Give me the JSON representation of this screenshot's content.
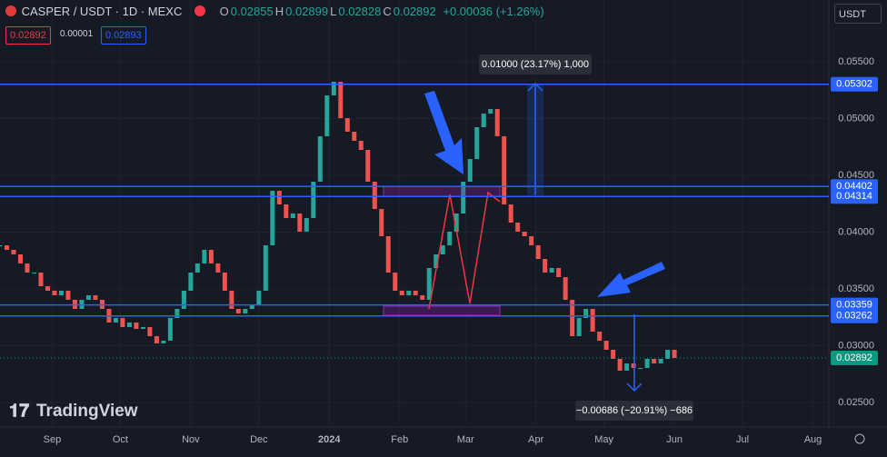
{
  "header": {
    "symbol": "CASPER / USDT · 1D · MEXC",
    "ohlc": [
      {
        "key": "O",
        "value": "0.02855"
      },
      {
        "key": "H",
        "value": "0.02899"
      },
      {
        "key": "L",
        "value": "0.02828"
      },
      {
        "key": "C",
        "value": "0.02892"
      }
    ],
    "change": "+0.00036 (+1.26%)",
    "bid": "0.02892",
    "spread": "0.00001",
    "ask": "0.02893",
    "currency": "USDT"
  },
  "chart_data": {
    "type": "candlestick",
    "x": [
      0,
      3,
      6,
      9,
      12,
      15,
      18,
      21,
      24,
      27,
      30,
      33,
      36,
      39,
      42,
      45,
      48,
      51,
      54,
      57,
      60,
      63,
      66,
      69,
      72,
      75,
      78,
      81,
      84,
      87,
      90,
      93,
      96,
      99,
      102,
      105,
      108,
      111,
      114,
      117,
      120,
      123,
      126,
      129,
      132,
      135,
      138,
      141,
      144,
      147,
      150,
      153,
      156,
      159,
      162,
      165,
      168,
      171,
      174,
      177,
      180,
      183,
      186,
      189,
      192,
      195,
      198,
      201,
      204,
      207,
      210,
      213,
      216,
      219,
      222,
      225,
      228,
      231,
      234,
      237,
      240,
      243,
      246,
      249,
      252,
      255,
      258,
      261,
      264,
      267,
      270,
      273,
      276,
      279,
      282,
      285,
      288,
      291,
      294,
      297
    ],
    "values": [
      0.03884,
      0.03844,
      0.03804,
      0.03724,
      0.03644,
      0.03644,
      0.03524,
      0.03484,
      0.03444,
      0.03484,
      0.03404,
      0.03324,
      0.03404,
      0.03444,
      0.03404,
      0.03324,
      0.03204,
      0.03244,
      0.03164,
      0.03204,
      0.03148,
      0.03164,
      0.03084,
      0.0302,
      0.03044,
      0.03244,
      0.03324,
      0.03484,
      0.03644,
      0.03724,
      0.03844,
      0.03724,
      0.03644,
      0.03484,
      0.03324,
      0.03284,
      0.03324,
      0.03364,
      0.03484,
      0.03884,
      0.04364,
      0.04244,
      0.04124,
      0.04164,
      0.04004,
      0.04124,
      0.04444,
      0.04844,
      0.05204,
      0.05324,
      0.05004,
      0.04884,
      0.04804,
      0.04724,
      0.04444,
      0.04204,
      0.03964,
      0.03644,
      0.03484,
      0.03444,
      0.03484,
      0.03444,
      0.03404,
      0.03684,
      0.03804,
      0.03884,
      0.04004,
      0.04164,
      0.04444,
      0.04644,
      0.04924,
      0.05044,
      0.05084,
      0.04844,
      0.04244,
      0.04084,
      0.04004,
      0.03964,
      0.03884,
      0.03764,
      0.03644,
      0.03684,
      0.03604,
      0.03404,
      0.03084,
      0.03244,
      0.03324,
      0.03124,
      0.03044,
      0.02964,
      0.02884,
      0.0278,
      0.02844,
      0.02804,
      0.02804,
      0.02884,
      0.02844,
      0.02884,
      0.02964,
      0.02892
    ],
    "up_color": "#26a69a",
    "down_color": "#ef5350",
    "xlim": [
      0,
      365
    ],
    "xticks": [
      {
        "value": 23,
        "label": "Sep"
      },
      {
        "value": 53,
        "label": "Oct"
      },
      {
        "value": 84,
        "label": "Nov"
      },
      {
        "value": 114,
        "label": "Dec"
      },
      {
        "value": 145,
        "label": "2024"
      },
      {
        "value": 176,
        "label": "Feb"
      },
      {
        "value": 205,
        "label": "Mar"
      },
      {
        "value": 236,
        "label": "Apr"
      },
      {
        "value": 266,
        "label": "May"
      },
      {
        "value": 297,
        "label": "Jun"
      },
      {
        "value": 327,
        "label": "Jul"
      },
      {
        "value": 358,
        "label": "Aug"
      }
    ],
    "ylim": [
      0.02284,
      0.06044
    ],
    "yticks": [
      {
        "value": 0.025,
        "label": "0.02500"
      },
      {
        "value": 0.03,
        "label": "0.03000"
      },
      {
        "value": 0.035,
        "label": "0.03500"
      },
      {
        "value": 0.04,
        "label": "0.04000"
      },
      {
        "value": 0.045,
        "label": "0.04500"
      },
      {
        "value": 0.05,
        "label": "0.05000"
      },
      {
        "value": 0.055,
        "label": "0.05500"
      }
    ],
    "grid": true,
    "levels": [
      {
        "value": 0.05302,
        "label": "0.05302"
      },
      {
        "value": 0.04402,
        "label": "0.04402"
      },
      {
        "value": 0.04314,
        "label": "0.04314"
      },
      {
        "value": 0.03359,
        "label": "0.03359"
      },
      {
        "value": 0.03262,
        "label": "0.03262"
      }
    ],
    "level_color": "#2962ff",
    "last_price": {
      "value": 0.02892,
      "label": "0.02892"
    },
    "last_color": "#089981",
    "annotations": [
      "0.01000 (23.17%) 1,000",
      "−0.00686 (−20.91%) −686"
    ]
  },
  "watermark": "TradingView"
}
